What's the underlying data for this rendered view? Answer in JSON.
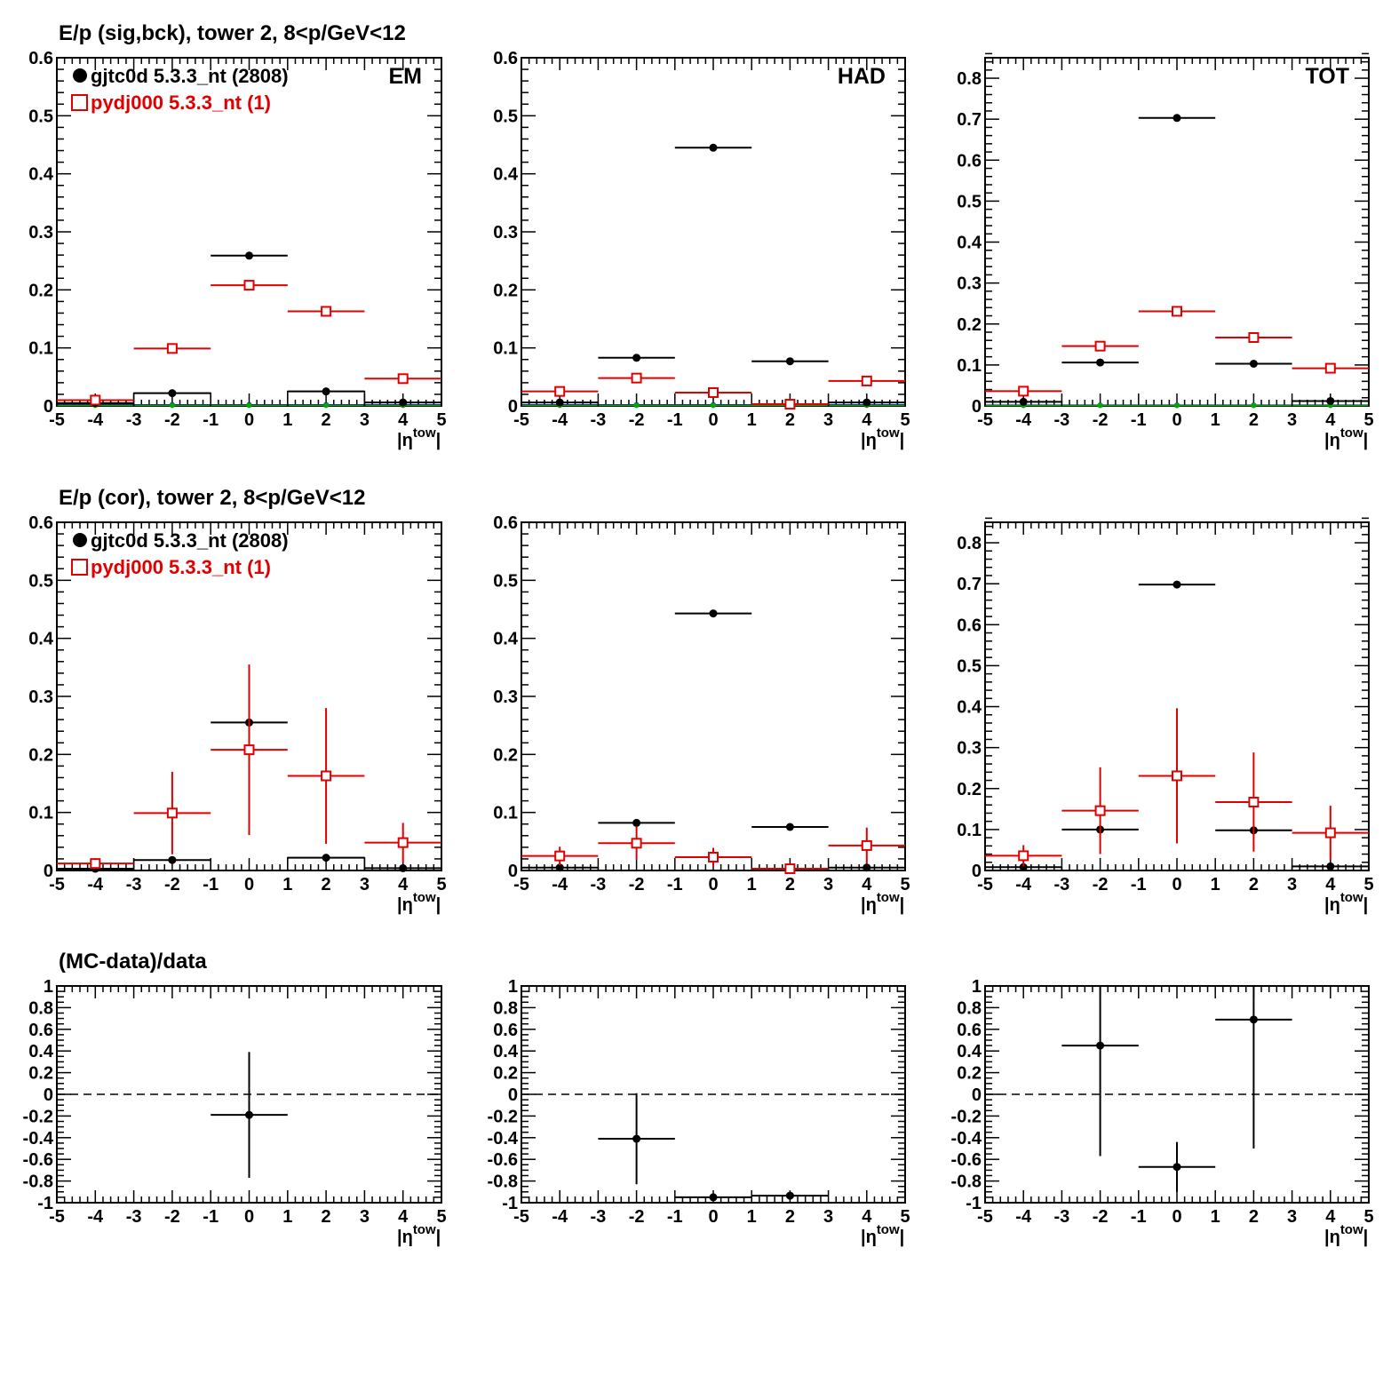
{
  "chart_data": [
    {
      "type": "scatter",
      "title": "E/p (sig,bck), tower 2,  8<p/GeV<12",
      "panel_label": "EM",
      "xlabel": "|ηtow|",
      "xlim": [
        -5,
        5
      ],
      "ylim": [
        0,
        0.6
      ],
      "yticks": [
        0,
        0.1,
        0.2,
        0.3,
        0.4,
        0.5,
        0.6
      ],
      "legend": [
        "gjtc0d 5.3.3_nt (2808)",
        "pydj000 5.3.3_nt (1)"
      ],
      "series": [
        {
          "name": "gjtc0d 5.3.3_nt (2808)",
          "color": "#000000",
          "marker": "filled-circle",
          "x": [
            -4,
            -2,
            0,
            2,
            4
          ],
          "y": [
            0.005,
            0.022,
            0.259,
            0.025,
            0.006
          ],
          "yerr": [
            0,
            0,
            0,
            0,
            0
          ]
        },
        {
          "name": "pydj000 5.3.3_nt (1)",
          "color": "#e00000",
          "marker": "open-square",
          "x": [
            -4,
            -2,
            0,
            2,
            4
          ],
          "y": [
            0.01,
            0.099,
            0.208,
            0.163,
            0.047
          ],
          "yerr": [
            0,
            0,
            0,
            0,
            0
          ]
        }
      ],
      "bins": [
        {
          "x": [
            -5,
            -3
          ],
          "y": 0.004
        },
        {
          "x": [
            -3,
            -1
          ],
          "y": 0.022
        },
        {
          "x": [
            1,
            3
          ],
          "y": 0.025
        },
        {
          "x": [
            3,
            5
          ],
          "y": 0.006
        }
      ],
      "baselines": [
        {
          "color": "#0000cc",
          "y": 0.002
        },
        {
          "color": "#00aa00",
          "y": 0.001
        }
      ]
    },
    {
      "type": "scatter",
      "panel_label": "HAD",
      "xlabel": "|ηtow|",
      "xlim": [
        -5,
        5
      ],
      "ylim": [
        0,
        0.6
      ],
      "yticks": [
        0,
        0.1,
        0.2,
        0.3,
        0.4,
        0.5,
        0.6
      ],
      "series": [
        {
          "color": "#000000",
          "marker": "filled-circle",
          "x": [
            -4,
            -2,
            0,
            2,
            4
          ],
          "y": [
            0.006,
            0.083,
            0.445,
            0.077,
            0.006
          ],
          "yerr": [
            0,
            0,
            0,
            0,
            0
          ]
        },
        {
          "color": "#e00000",
          "marker": "open-square",
          "x": [
            -4,
            -2,
            0,
            2,
            4
          ],
          "y": [
            0.025,
            0.048,
            0.023,
            0.003,
            0.043
          ],
          "yerr": [
            0,
            0,
            0,
            0,
            0
          ]
        }
      ],
      "bins": [
        {
          "x": [
            -5,
            -3
          ],
          "y": 0.006
        },
        {
          "x": [
            3,
            5
          ],
          "y": 0.006
        }
      ],
      "baselines": [
        {
          "color": "#0000cc",
          "y": 0.002
        },
        {
          "color": "#00aa00",
          "y": 0.001
        }
      ]
    },
    {
      "type": "scatter",
      "panel_label": "TOT",
      "xlabel": "|ηtow|",
      "xlim": [
        -5,
        5
      ],
      "ylim": [
        0,
        0.85
      ],
      "yticks": [
        0,
        0.1,
        0.2,
        0.3,
        0.4,
        0.5,
        0.6,
        0.7,
        0.8
      ],
      "series": [
        {
          "color": "#000000",
          "marker": "filled-circle",
          "x": [
            -4,
            -2,
            0,
            2,
            4
          ],
          "y": [
            0.01,
            0.106,
            0.703,
            0.103,
            0.012
          ],
          "yerr": [
            0,
            0,
            0,
            0,
            0
          ]
        },
        {
          "color": "#e00000",
          "marker": "open-square",
          "x": [
            -4,
            -2,
            0,
            2,
            4
          ],
          "y": [
            0.036,
            0.146,
            0.231,
            0.167,
            0.092
          ],
          "yerr": [
            0,
            0,
            0,
            0,
            0
          ]
        }
      ],
      "bins": [
        {
          "x": [
            -5,
            -3
          ],
          "y": 0.01
        },
        {
          "x": [
            3,
            5
          ],
          "y": 0.012
        }
      ],
      "baselines": [
        {
          "color": "#0000cc",
          "y": 0.002
        },
        {
          "color": "#00aa00",
          "y": 0.001
        }
      ]
    },
    {
      "type": "scatter",
      "title": "E/p (cor), tower 2,  8<p/GeV<12",
      "xlabel": "|ηtow|",
      "xlim": [
        -5,
        5
      ],
      "ylim": [
        0,
        0.6
      ],
      "yticks": [
        0,
        0.1,
        0.2,
        0.3,
        0.4,
        0.5,
        0.6
      ],
      "legend": [
        "gjtc0d 5.3.3_nt (2808)",
        "pydj000 5.3.3_nt (1)"
      ],
      "series": [
        {
          "name": "gjtc0d 5.3.3_nt (2808)",
          "color": "#000000",
          "marker": "filled-circle",
          "x": [
            -4,
            -2,
            0,
            2,
            4
          ],
          "y": [
            0.003,
            0.018,
            0.255,
            0.022,
            0.004
          ],
          "yerr": [
            0,
            0,
            0,
            0,
            0
          ]
        },
        {
          "name": "pydj000 5.3.3_nt (1)",
          "color": "#e00000",
          "marker": "open-square",
          "x": [
            -4,
            -2,
            0,
            2,
            4
          ],
          "y": [
            0.012,
            0.099,
            0.208,
            0.163,
            0.048
          ],
          "yerr": [
            0.005,
            0.071,
            0.147,
            0.117,
            0.034
          ]
        }
      ],
      "bins": [
        {
          "x": [
            -5,
            -3
          ],
          "y": 0.003
        },
        {
          "x": [
            -3,
            -1
          ],
          "y": 0.018
        },
        {
          "x": [
            1,
            3
          ],
          "y": 0.022
        },
        {
          "x": [
            3,
            5
          ],
          "y": 0.004
        }
      ],
      "baselines": []
    },
    {
      "type": "scatter",
      "xlabel": "|ηtow|",
      "xlim": [
        -5,
        5
      ],
      "ylim": [
        0,
        0.6
      ],
      "yticks": [
        0,
        0.1,
        0.2,
        0.3,
        0.4,
        0.5,
        0.6
      ],
      "series": [
        {
          "color": "#000000",
          "marker": "filled-circle",
          "x": [
            -4,
            -2,
            0,
            2,
            4
          ],
          "y": [
            0.005,
            0.082,
            0.443,
            0.075,
            0.005
          ],
          "yerr": [
            0,
            0,
            0.004,
            0,
            0
          ]
        },
        {
          "color": "#e00000",
          "marker": "open-square",
          "x": [
            -4,
            -2,
            0,
            2,
            4
          ],
          "y": [
            0.025,
            0.047,
            0.023,
            0.003,
            0.043
          ],
          "yerr": [
            0.016,
            0.029,
            0.016,
            0.005,
            0.031
          ]
        }
      ],
      "bins": [
        {
          "x": [
            -5,
            -3
          ],
          "y": 0.005
        },
        {
          "x": [
            3,
            5
          ],
          "y": 0.005
        }
      ],
      "baselines": []
    },
    {
      "type": "scatter",
      "xlabel": "|ηtow|",
      "xlim": [
        -5,
        5
      ],
      "ylim": [
        0,
        0.85
      ],
      "yticks": [
        0,
        0.1,
        0.2,
        0.3,
        0.4,
        0.5,
        0.6,
        0.7,
        0.8
      ],
      "series": [
        {
          "color": "#000000",
          "marker": "filled-circle",
          "x": [
            -4,
            -2,
            0,
            2,
            4
          ],
          "y": [
            0.008,
            0.1,
            0.698,
            0.098,
            0.01
          ],
          "yerr": [
            0,
            0,
            0,
            0,
            0
          ]
        },
        {
          "color": "#e00000",
          "marker": "open-square",
          "x": [
            -4,
            -2,
            0,
            2,
            4
          ],
          "y": [
            0.036,
            0.146,
            0.231,
            0.167,
            0.092
          ],
          "yerr": [
            0.026,
            0.106,
            0.165,
            0.121,
            0.066
          ]
        }
      ],
      "bins": [
        {
          "x": [
            -5,
            -3
          ],
          "y": 0.008
        },
        {
          "x": [
            3,
            5
          ],
          "y": 0.01
        }
      ],
      "baselines": []
    },
    {
      "type": "scatter",
      "title": "(MC-data)/data",
      "xlabel": "|ηtow|",
      "xlim": [
        -5,
        5
      ],
      "ylim": [
        -1,
        1
      ],
      "yticks": [
        -1,
        -0.8,
        -0.6,
        -0.4,
        -0.2,
        0,
        0.2,
        0.4,
        0.6,
        0.8,
        1
      ],
      "reference_line": 0,
      "series": [
        {
          "color": "#000000",
          "marker": "filled-circle",
          "x": [
            0
          ],
          "y": [
            -0.19
          ],
          "yerr": [
            0.58
          ]
        }
      ],
      "bins": [],
      "baselines": []
    },
    {
      "type": "scatter",
      "xlabel": "|ηtow|",
      "xlim": [
        -5,
        5
      ],
      "ylim": [
        -1,
        1
      ],
      "yticks": [
        -1,
        -0.8,
        -0.6,
        -0.4,
        -0.2,
        0,
        0.2,
        0.4,
        0.6,
        0.8,
        1
      ],
      "reference_line": 0,
      "series": [
        {
          "color": "#000000",
          "marker": "filled-circle",
          "x": [
            -2,
            0,
            2
          ],
          "y": [
            -0.41,
            -0.95,
            -0.935
          ],
          "yerr": [
            0.42,
            0,
            0
          ]
        }
      ],
      "bins": [],
      "baselines": []
    },
    {
      "type": "scatter",
      "xlabel": "|ηtow|",
      "xlim": [
        -5,
        5
      ],
      "ylim": [
        -1,
        1
      ],
      "yticks": [
        -1,
        -0.8,
        -0.6,
        -0.4,
        -0.2,
        0,
        0.2,
        0.4,
        0.6,
        0.8,
        1
      ],
      "reference_line": 0,
      "series": [
        {
          "color": "#000000",
          "marker": "filled-circle",
          "x": [
            -2,
            0,
            2
          ],
          "y": [
            0.45,
            -0.67,
            0.69
          ],
          "yerr": [
            1.02,
            0.23,
            1.19
          ]
        }
      ],
      "bins": [],
      "baselines": []
    }
  ]
}
